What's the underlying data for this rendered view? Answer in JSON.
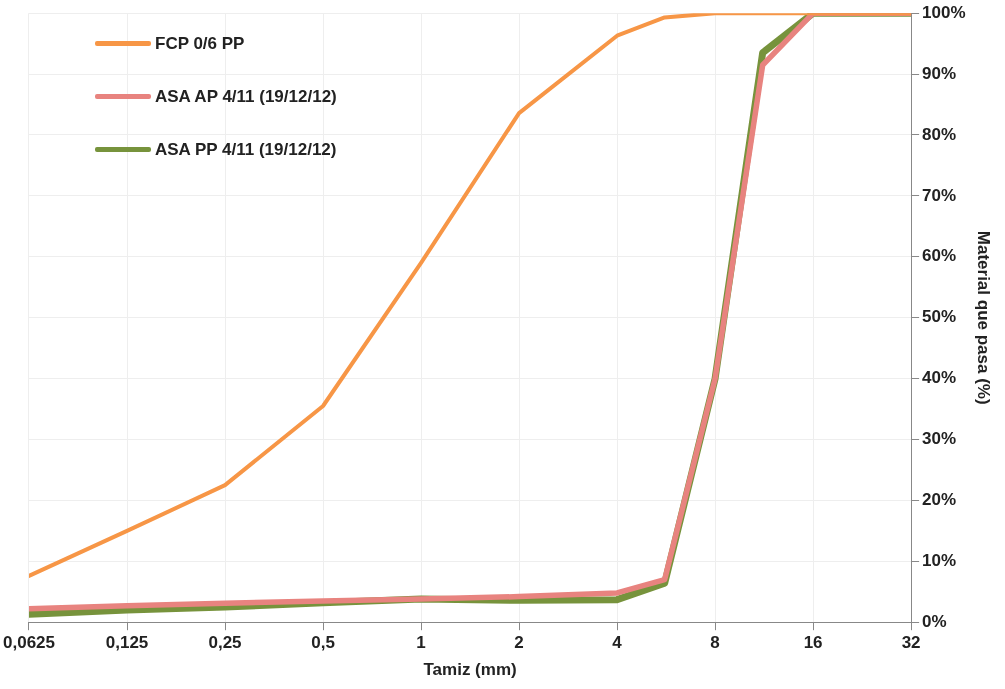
{
  "chart_data": {
    "type": "line",
    "xlabel": "Tamiz (mm)",
    "ylabel": "Material que pasa (%)",
    "log": "x",
    "grid": true,
    "legend": "top left",
    "marker": "none",
    "line_style": "solid",
    "xlim": [
      0.0625,
      32
    ],
    "xticks": [
      {
        "value": 0.0625,
        "label": "0,0625"
      },
      {
        "value": 0.125,
        "label": "0,125"
      },
      {
        "value": 0.25,
        "label": "0,25"
      },
      {
        "value": 0.5,
        "label": "0,5"
      },
      1,
      2,
      4,
      8,
      16,
      32
    ],
    "ylim": [
      0,
      100
    ],
    "yticks": [
      {
        "value": 0,
        "label": "0%"
      },
      {
        "value": 10,
        "label": "10%"
      },
      {
        "value": 20,
        "label": "20%"
      },
      {
        "value": 30,
        "label": "30%"
      },
      {
        "value": 40,
        "label": "40%"
      },
      {
        "value": 50,
        "label": "50%"
      },
      {
        "value": 60,
        "label": "60%"
      },
      {
        "value": 70,
        "label": "70%"
      },
      {
        "value": 80,
        "label": "80%"
      },
      {
        "value": 90,
        "label": "90%"
      },
      {
        "value": 100,
        "label": "100%"
      }
    ],
    "x": [
      0.0625,
      0.125,
      0.25,
      0.5,
      1,
      2,
      4,
      5.6,
      8,
      11.2,
      16,
      22.4,
      32
    ],
    "series": [
      {
        "name": "FCP 0/6 PP",
        "color": "#f79646",
        "values": [
          7.6,
          15,
          22.5,
          35.5,
          59,
          83.6,
          96.3,
          99.3,
          100,
          100,
          100,
          100,
          100
        ]
      },
      {
        "name": "ASA AP 4/11 (19/12/12)",
        "color": "#e8837f",
        "values": [
          2.2,
          2.7,
          3.1,
          3.5,
          3.8,
          4.2,
          4.8,
          7,
          40,
          91.5,
          100,
          100,
          100
        ]
      },
      {
        "name": "ASA PP 4/11 (19/12/12)",
        "color": "#77933c",
        "values": [
          1.3,
          2,
          2.5,
          3.2,
          3.8,
          3.6,
          3.7,
          6.4,
          40,
          93.5,
          100,
          100,
          100
        ]
      }
    ]
  }
}
